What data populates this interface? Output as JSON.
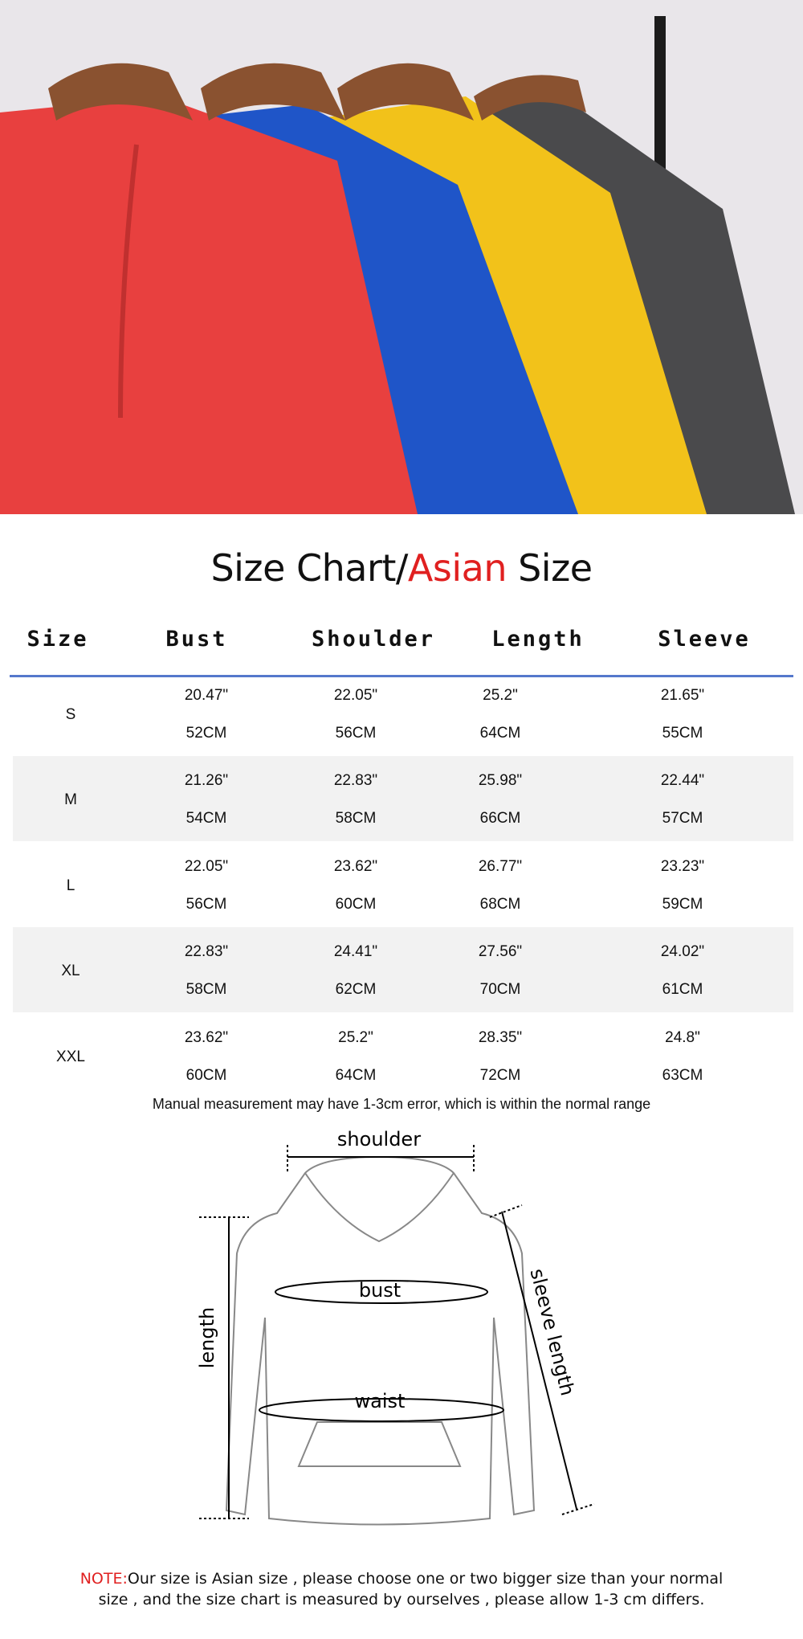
{
  "title": {
    "part1": "Size Chart/",
    "part2": "Asian",
    "part3": " Size",
    "accent_color": "#e02020"
  },
  "table": {
    "headers": [
      "Size",
      "Bust",
      "Shoulder",
      "Length",
      "Sleeve"
    ],
    "rows": [
      {
        "size": "S",
        "inch": [
          "20.47\"",
          "22.05\"",
          "25.2\"",
          "21.65\""
        ],
        "cm": [
          "52CM",
          "56CM",
          "64CM",
          "55CM"
        ]
      },
      {
        "size": "M",
        "inch": [
          "21.26\"",
          "22.83\"",
          "25.98\"",
          "22.44\""
        ],
        "cm": [
          "54CM",
          "58CM",
          "66CM",
          "57CM"
        ]
      },
      {
        "size": "L",
        "inch": [
          "22.05\"",
          "23.62\"",
          "26.77\"",
          "23.23\""
        ],
        "cm": [
          "56CM",
          "60CM",
          "68CM",
          "59CM"
        ]
      },
      {
        "size": "XL",
        "inch": [
          "22.83\"",
          "24.41\"",
          "27.56\"",
          "24.02\""
        ],
        "cm": [
          "58CM",
          "62CM",
          "70CM",
          "61CM"
        ]
      },
      {
        "size": "XXL",
        "inch": [
          "23.62\"",
          "25.2\"",
          "28.35\"",
          "24.8\""
        ],
        "cm": [
          "60CM",
          "64CM",
          "72CM",
          "63CM"
        ]
      }
    ],
    "footnote": "Manual measurement may have 1-3cm error, which is within the normal range"
  },
  "diagram": {
    "shoulder": "shoulder",
    "bust": "bust",
    "waist": "waist",
    "length": "length",
    "sleeve_length": "sleeve length"
  },
  "note": {
    "label": "NOTE:",
    "line1": "Our size is Asian size , please choose one or two bigger size than your normal",
    "line2": "size , and the size chart is measured by ourselves , please allow 1-3 cm differs."
  },
  "photo": {
    "hoodie_colors": [
      "#e8403f",
      "#1f55c8",
      "#f2c21a",
      "#4a4a4c"
    ]
  }
}
